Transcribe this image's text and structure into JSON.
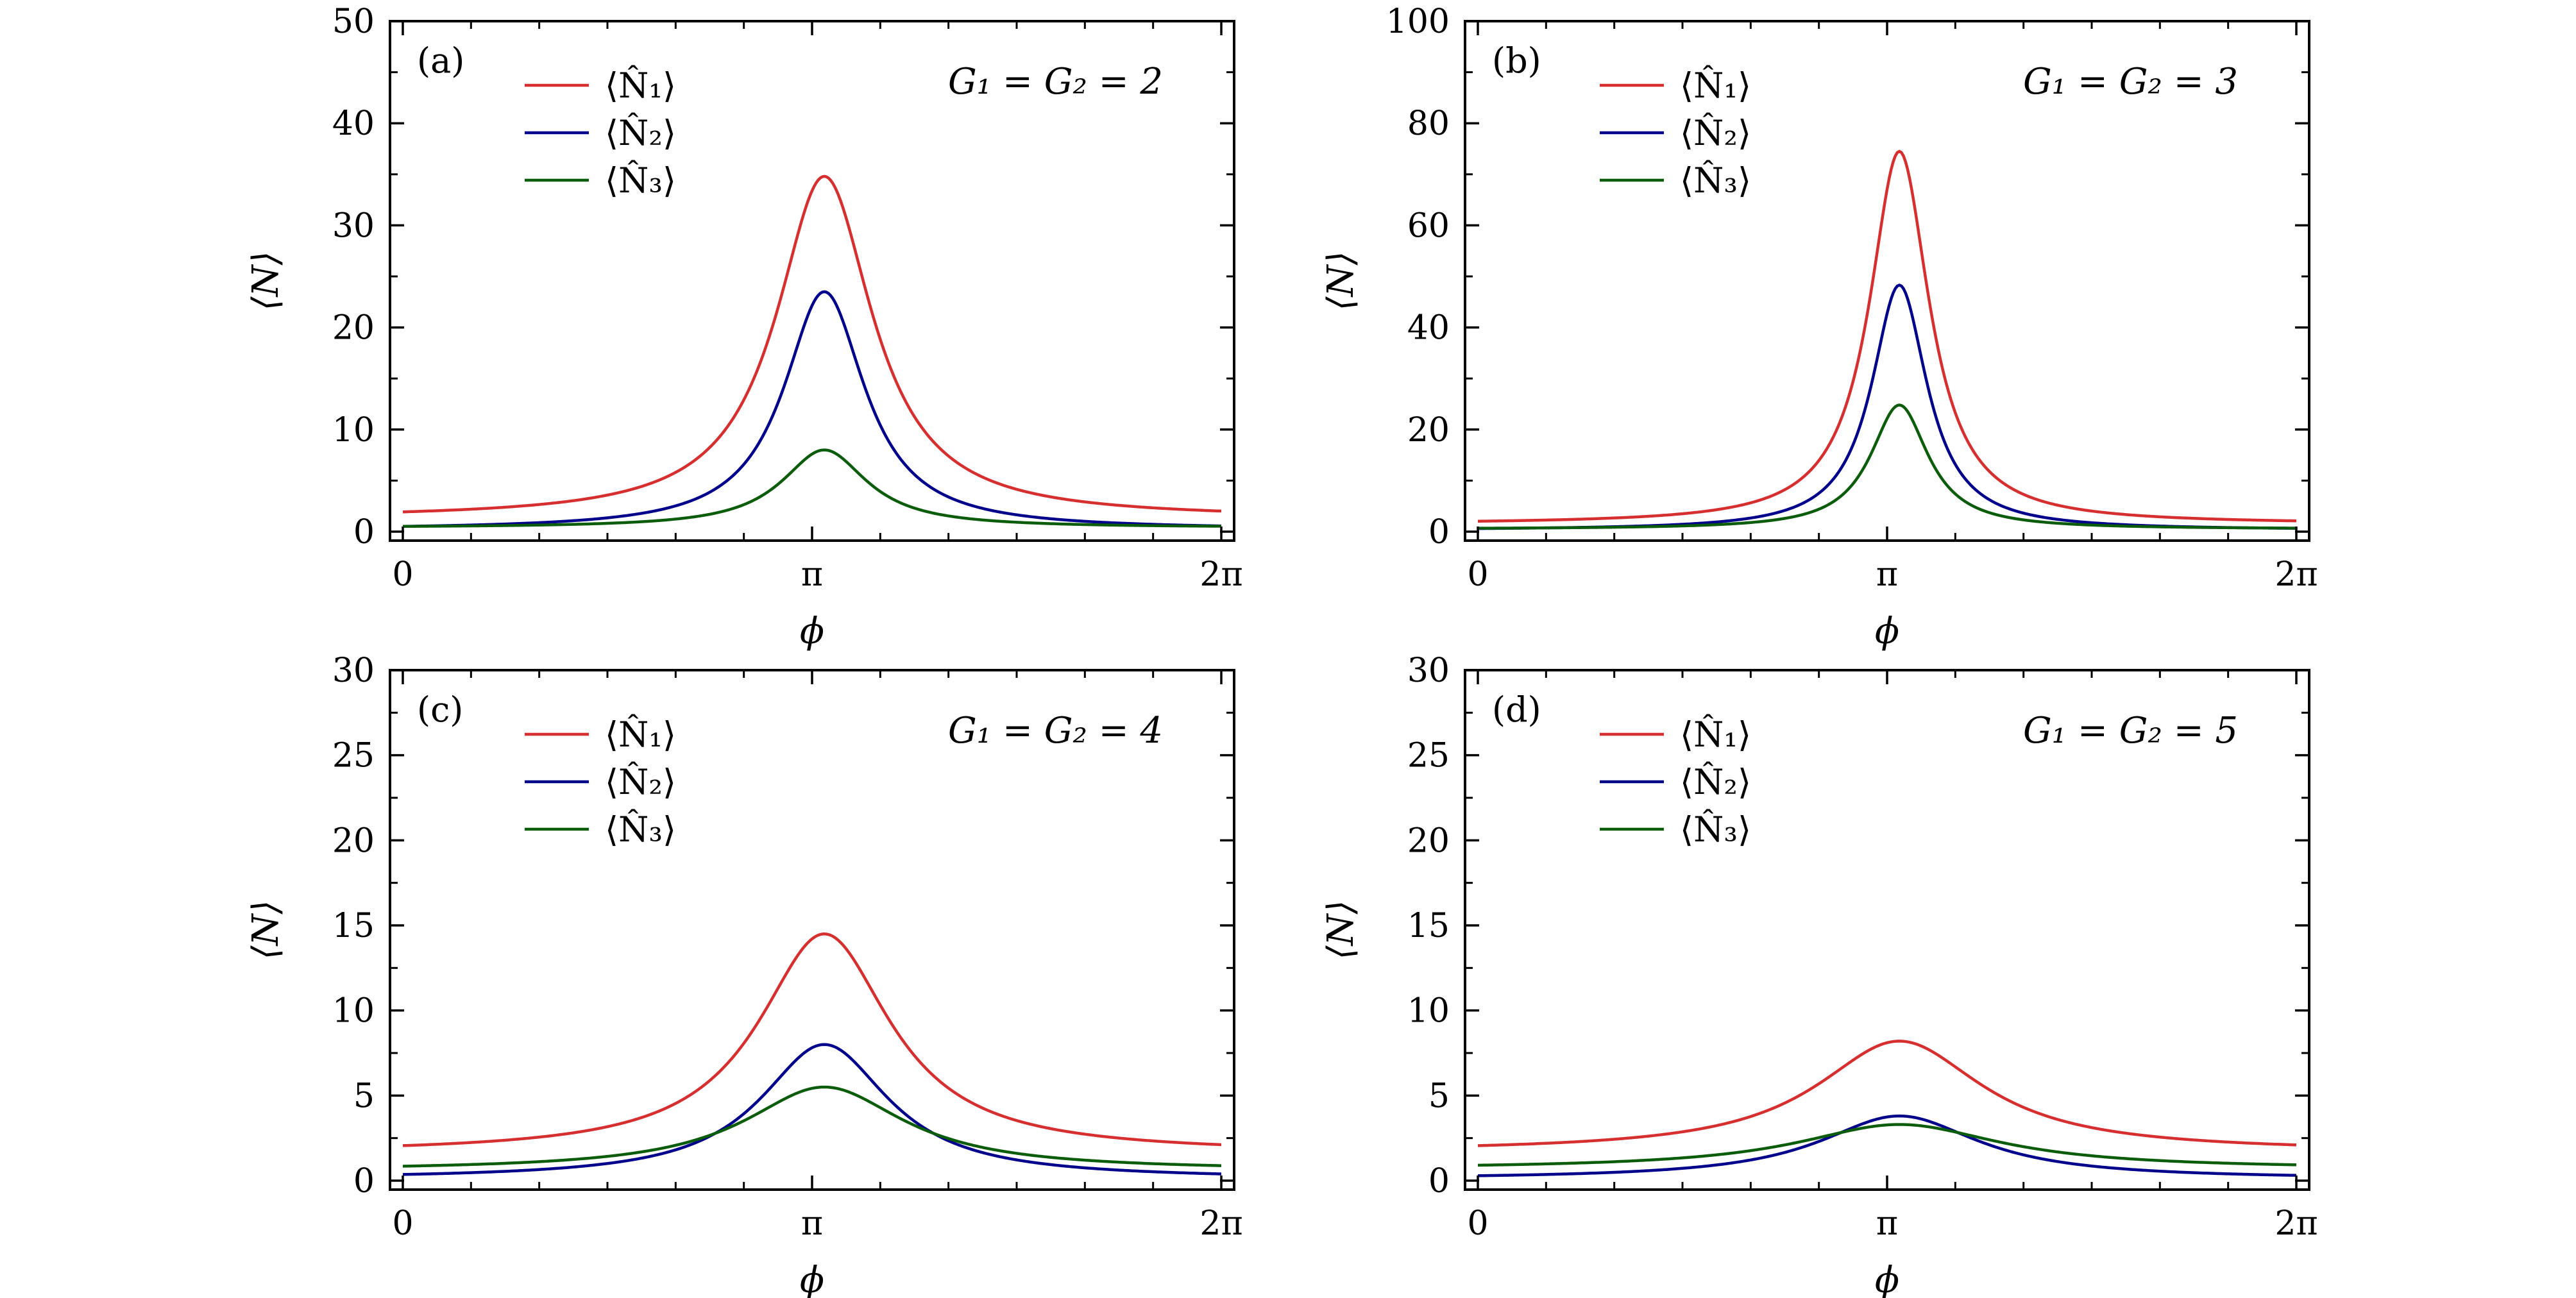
{
  "colors": {
    "n1": "#d62f2f",
    "n2": "#00008b",
    "n3": "#0b5d0b",
    "axes": "#000000",
    "background": "#ffffff"
  },
  "chart_data": [
    {
      "type": "line",
      "panel_label": "(a)",
      "annotation": "G₁ = G₂ = 2",
      "xlabel": "ϕ",
      "ylabel": "⟨N⟩",
      "xlim": [
        0,
        6.283185
      ],
      "ylim": [
        0,
        50
      ],
      "xticks": [
        {
          "value": 0,
          "label": "0"
        },
        {
          "value": 3.141593,
          "label": "π"
        },
        {
          "value": 6.283185,
          "label": "2π"
        }
      ],
      "yticks": [
        {
          "value": 0,
          "label": "0"
        },
        {
          "value": 10,
          "label": "10"
        },
        {
          "value": 20,
          "label": "20"
        },
        {
          "value": 30,
          "label": "30"
        },
        {
          "value": 40,
          "label": "40"
        },
        {
          "value": 50,
          "label": "50"
        }
      ],
      "legend_position": "top-left",
      "series": [
        {
          "name": "⟨N̂₁⟩",
          "color_key": "n1",
          "baseline": 1.3,
          "peak": 34.8,
          "width": 0.45
        },
        {
          "name": "⟨N̂₂⟩",
          "color_key": "n2",
          "baseline": 0.2,
          "peak": 23.5,
          "width": 0.38
        },
        {
          "name": "⟨N̂₃⟩",
          "color_key": "n3",
          "baseline": 0.4,
          "peak": 8.0,
          "width": 0.4
        }
      ]
    },
    {
      "type": "line",
      "panel_label": "(b)",
      "annotation": "G₁ = G₂ = 3",
      "xlabel": "ϕ",
      "ylabel": "⟨N⟩",
      "xlim": [
        0,
        6.283185
      ],
      "ylim": [
        0,
        100
      ],
      "xticks": [
        {
          "value": 0,
          "label": "0"
        },
        {
          "value": 3.141593,
          "label": "π"
        },
        {
          "value": 6.283185,
          "label": "2π"
        }
      ],
      "yticks": [
        {
          "value": 0,
          "label": "0"
        },
        {
          "value": 20,
          "label": "20"
        },
        {
          "value": 40,
          "label": "40"
        },
        {
          "value": 60,
          "label": "60"
        },
        {
          "value": 80,
          "label": "80"
        },
        {
          "value": 100,
          "label": "100"
        }
      ],
      "legend_position": "top-left",
      "series": [
        {
          "name": "⟨N̂₁⟩",
          "color_key": "n1",
          "baseline": 1.5,
          "peak": 74.5,
          "width": 0.28
        },
        {
          "name": "⟨N̂₂⟩",
          "color_key": "n2",
          "baseline": 0.3,
          "peak": 48.3,
          "width": 0.26
        },
        {
          "name": "⟨N̂₃⟩",
          "color_key": "n3",
          "baseline": 0.5,
          "peak": 24.8,
          "width": 0.27
        }
      ]
    },
    {
      "type": "line",
      "panel_label": "(c)",
      "annotation": "G₁ = G₂ = 4",
      "xlabel": "ϕ",
      "ylabel": "⟨N⟩",
      "xlim": [
        0,
        6.283185
      ],
      "ylim": [
        0,
        30
      ],
      "xticks": [
        {
          "value": 0,
          "label": "0"
        },
        {
          "value": 3.141593,
          "label": "π"
        },
        {
          "value": 6.283185,
          "label": "2π"
        }
      ],
      "yticks": [
        {
          "value": 0,
          "label": "0"
        },
        {
          "value": 5,
          "label": "5"
        },
        {
          "value": 10,
          "label": "10"
        },
        {
          "value": 15,
          "label": "15"
        },
        {
          "value": 20,
          "label": "20"
        },
        {
          "value": 25,
          "label": "25"
        },
        {
          "value": 30,
          "label": "30"
        }
      ],
      "legend_position": "top-left",
      "series": [
        {
          "name": "⟨N̂₁⟩",
          "color_key": "n1",
          "baseline": 1.6,
          "peak": 14.5,
          "width": 0.62
        },
        {
          "name": "⟨N̂₂⟩",
          "color_key": "n2",
          "baseline": 0.1,
          "peak": 8.0,
          "width": 0.6
        },
        {
          "name": "⟨N̂₃⟩",
          "color_key": "n3",
          "baseline": 0.6,
          "peak": 5.5,
          "width": 0.75
        }
      ]
    },
    {
      "type": "line",
      "panel_label": "(d)",
      "annotation": "G₁ = G₂ = 5",
      "xlabel": "ϕ",
      "ylabel": "⟨N⟩",
      "xlim": [
        0,
        6.283185
      ],
      "ylim": [
        0,
        30
      ],
      "xticks": [
        {
          "value": 0,
          "label": "0"
        },
        {
          "value": 3.141593,
          "label": "π"
        },
        {
          "value": 6.283185,
          "label": "2π"
        }
      ],
      "yticks": [
        {
          "value": 0,
          "label": "0"
        },
        {
          "value": 5,
          "label": "5"
        },
        {
          "value": 10,
          "label": "10"
        },
        {
          "value": 15,
          "label": "15"
        },
        {
          "value": 20,
          "label": "20"
        },
        {
          "value": 25,
          "label": "25"
        },
        {
          "value": 30,
          "label": "30"
        }
      ],
      "legend_position": "top-left",
      "series": [
        {
          "name": "⟨N̂₁⟩",
          "color_key": "n1",
          "baseline": 1.7,
          "peak": 8.2,
          "width": 0.78
        },
        {
          "name": "⟨N̂₂⟩",
          "color_key": "n2",
          "baseline": 0.1,
          "peak": 3.8,
          "width": 0.75
        },
        {
          "name": "⟨N̂₃⟩",
          "color_key": "n3",
          "baseline": 0.7,
          "peak": 3.3,
          "width": 0.95
        }
      ]
    }
  ]
}
